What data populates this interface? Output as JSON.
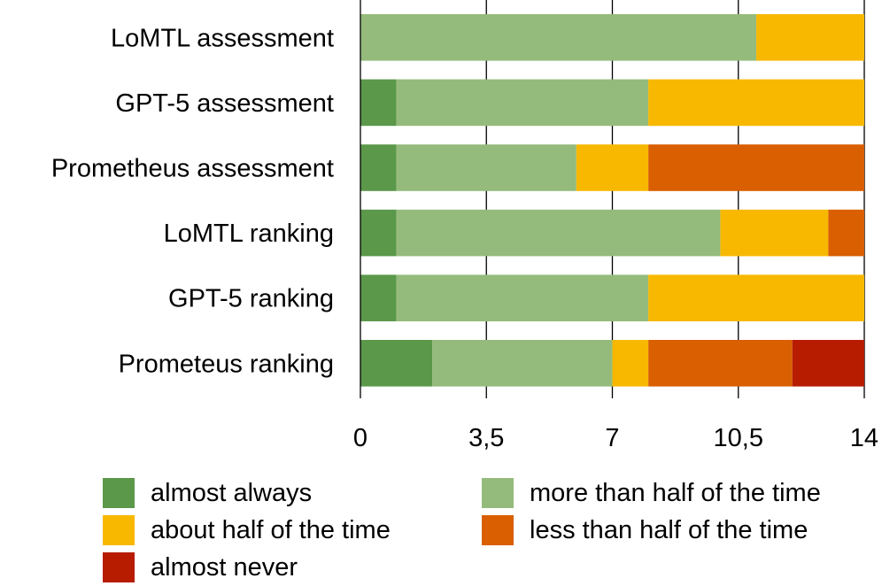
{
  "chart_data": {
    "type": "bar",
    "orientation": "horizontal",
    "stacked": true,
    "categories": [
      "LoMTL assessment",
      "GPT-5 assessment",
      "Prometheus assessment",
      "LoMTL ranking",
      "GPT-5 ranking",
      "Prometeus ranking"
    ],
    "series": [
      {
        "name": "almost always",
        "color": "#5b984a",
        "values": [
          0,
          1,
          1,
          1,
          1,
          2
        ]
      },
      {
        "name": "more than half of the time",
        "color": "#94bb7b",
        "values": [
          11,
          7,
          5,
          9,
          7,
          5
        ]
      },
      {
        "name": "about half of the time",
        "color": "#f8b800",
        "values": [
          3,
          6,
          2,
          3,
          6,
          1
        ]
      },
      {
        "name": "less than half of the time",
        "color": "#d95f00",
        "values": [
          0,
          0,
          6,
          1,
          0,
          4
        ]
      },
      {
        "name": "almost never",
        "color": "#b71c00",
        "values": [
          0,
          0,
          0,
          0,
          0,
          2
        ]
      }
    ],
    "xlim": [
      0,
      14
    ],
    "xticks": [
      0,
      3.5,
      7,
      10.5,
      14
    ],
    "xtick_labels": [
      "0",
      "3,5",
      "7",
      "10,5",
      "14"
    ],
    "grid": true,
    "legend_position": "bottom",
    "title": "",
    "xlabel": "",
    "ylabel": ""
  }
}
